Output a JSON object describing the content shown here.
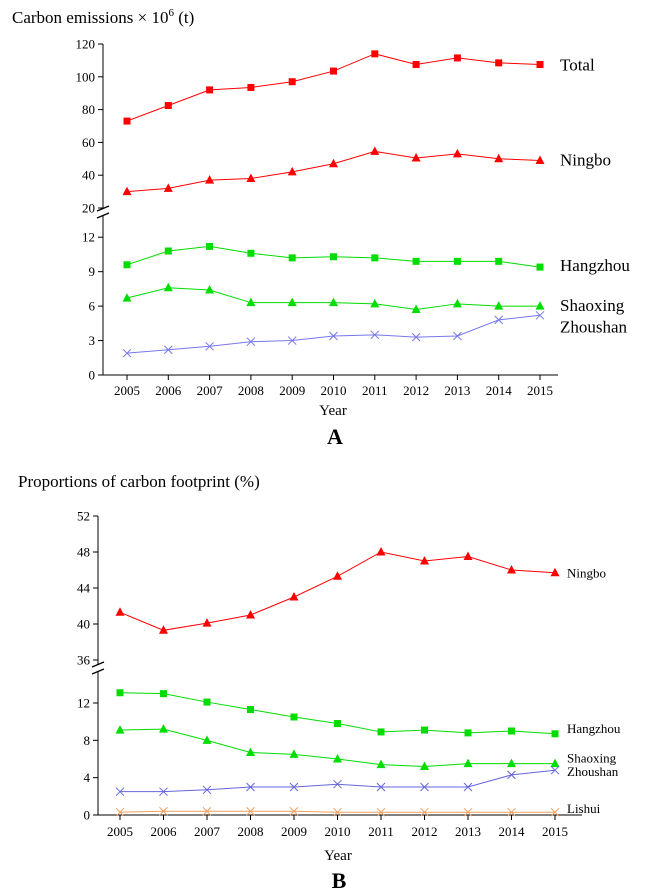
{
  "chart_data": [
    {
      "panel_label": "A",
      "type": "line",
      "ylabel": "Carbon emissions × 10",
      "ylabel_sup": "6",
      "ylabel_unit": " (t)",
      "xlabel": "Year",
      "x": [
        "2005",
        "2006",
        "2007",
        "2008",
        "2009",
        "2010",
        "2011",
        "2012",
        "2013",
        "2014",
        "2015"
      ],
      "axis_break": true,
      "upper_ticks": [
        "20",
        "40",
        "60",
        "80",
        "100",
        "120"
      ],
      "lower_ticks": [
        "0",
        "3",
        "6",
        "9",
        "12"
      ],
      "upper_range": [
        20,
        120
      ],
      "lower_range": [
        0,
        13.5
      ],
      "series": [
        {
          "name": "Total",
          "segment": "upper",
          "marker": "square",
          "color": "#ff0000",
          "values": [
            73,
            82.5,
            92,
            93.5,
            97,
            103.5,
            114,
            107.5,
            111.5,
            108.5,
            107.5
          ]
        },
        {
          "name": "Ningbo",
          "segment": "upper",
          "marker": "triangle",
          "color": "#ff0000",
          "values": [
            30,
            32,
            37,
            38,
            42,
            47,
            54.5,
            50.5,
            53,
            50,
            49
          ]
        },
        {
          "name": "Hangzhou",
          "segment": "lower",
          "marker": "square",
          "color": "#00dd00",
          "values": [
            9.6,
            10.8,
            11.2,
            10.6,
            10.2,
            10.3,
            10.2,
            9.9,
            9.9,
            9.9,
            9.4
          ]
        },
        {
          "name": "Shaoxing",
          "segment": "lower",
          "marker": "triangle",
          "color": "#00dd00",
          "values": [
            6.7,
            7.6,
            7.4,
            6.3,
            6.3,
            6.3,
            6.2,
            5.7,
            6.2,
            6.0,
            6.0
          ]
        },
        {
          "name": "Zhoushan",
          "segment": "lower",
          "marker": "x",
          "color": "#7777ee",
          "values": [
            1.9,
            2.2,
            2.5,
            2.9,
            3.0,
            3.4,
            3.5,
            3.3,
            3.4,
            4.8,
            5.2
          ]
        }
      ]
    },
    {
      "panel_label": "B",
      "type": "line",
      "title": "Proportions of carbon footprint (%)",
      "xlabel": "Year",
      "x": [
        "2005",
        "2006",
        "2007",
        "2008",
        "2009",
        "2010",
        "2011",
        "2012",
        "2013",
        "2014",
        "2015"
      ],
      "axis_break": true,
      "upper_ticks": [
        "36",
        "40",
        "44",
        "48",
        "52"
      ],
      "lower_ticks": [
        "0",
        "4",
        "8",
        "12"
      ],
      "upper_range": [
        36,
        52
      ],
      "lower_range": [
        0,
        15
      ],
      "series": [
        {
          "name": "Ningbo",
          "segment": "upper",
          "marker": "triangle",
          "color": "#ff0000",
          "values": [
            41.3,
            39.3,
            40.1,
            41.0,
            43.0,
            45.3,
            48.0,
            47.0,
            47.5,
            46.0,
            45.7
          ]
        },
        {
          "name": "Hangzhou",
          "segment": "lower",
          "marker": "square",
          "color": "#00dd00",
          "values": [
            13.1,
            13.0,
            12.1,
            11.3,
            10.5,
            9.8,
            8.9,
            9.1,
            8.8,
            9.0,
            8.7
          ]
        },
        {
          "name": "Shaoxing",
          "segment": "lower",
          "marker": "triangle",
          "color": "#00dd00",
          "values": [
            9.1,
            9.2,
            8.0,
            6.7,
            6.5,
            6.0,
            5.4,
            5.2,
            5.5,
            5.5,
            5.5
          ]
        },
        {
          "name": "Zhoushan",
          "segment": "lower",
          "marker": "x",
          "color": "#6666dd",
          "values": [
            2.5,
            2.5,
            2.7,
            3.0,
            3.0,
            3.3,
            3.0,
            3.0,
            3.0,
            4.3,
            4.8
          ]
        },
        {
          "name": "Lishui",
          "segment": "lower",
          "marker": "x",
          "color": "#f0a060",
          "values": [
            0.3,
            0.4,
            0.4,
            0.4,
            0.4,
            0.3,
            0.3,
            0.3,
            0.3,
            0.3,
            0.3
          ]
        }
      ]
    }
  ]
}
